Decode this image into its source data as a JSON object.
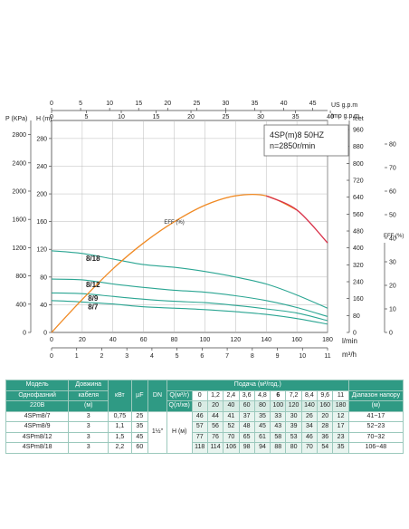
{
  "chart_data": {
    "type": "line",
    "info_box": {
      "line1": "4SP(m)8  50HZ",
      "line2": "n=2850r/min"
    },
    "axes": {
      "us_gpm": {
        "label": "US g.p.m",
        "ticks": [
          0,
          5,
          10,
          15,
          20,
          25,
          30,
          35,
          40,
          45
        ],
        "range": [
          0,
          47.55
        ]
      },
      "imp_gpm": {
        "label": "Imp g.p.m",
        "ticks": [
          0,
          5,
          10,
          15,
          20,
          25,
          30,
          35,
          40
        ],
        "range": [
          0,
          39.6
        ]
      },
      "pressure_kpa": {
        "label": "P (KPa)",
        "ticks": [
          0,
          400,
          800,
          1200,
          1600,
          2000,
          2400,
          2800
        ],
        "range": [
          0,
          3000
        ]
      },
      "head_m": {
        "label": "H (m)",
        "ticks": [
          0,
          40,
          80,
          120,
          160,
          200,
          240,
          280
        ],
        "range": [
          0,
          306
        ]
      },
      "head_feet": {
        "label": "feet",
        "ticks": [
          0,
          80,
          160,
          240,
          320,
          400,
          480,
          560,
          640,
          720,
          800,
          880,
          960
        ],
        "range": [
          0,
          1003
        ]
      },
      "efficiency": {
        "label": "EFF (%)",
        "ticks": [
          0,
          10,
          20,
          30,
          40,
          50,
          60,
          70,
          80
        ],
        "range": [
          0,
          90
        ]
      },
      "flow_lmin": {
        "label": "l/min",
        "ticks": [
          0,
          20,
          40,
          60,
          80,
          100,
          120,
          140,
          160,
          180
        ],
        "range": [
          0,
          180
        ]
      },
      "flow_m3h": {
        "label": "m³/h",
        "ticks": [
          0,
          1,
          2,
          3,
          4,
          5,
          6,
          7,
          8,
          9,
          10,
          11
        ],
        "range": [
          0,
          11
        ]
      }
    },
    "grid": true,
    "series": [
      {
        "name": "8/18",
        "x": [
          0,
          20,
          40,
          60,
          80,
          100,
          120,
          140,
          160,
          180
        ],
        "y": [
          118,
          114,
          106,
          98,
          94,
          88,
          80,
          70,
          54,
          35
        ]
      },
      {
        "name": "8/12",
        "x": [
          0,
          20,
          40,
          60,
          80,
          100,
          120,
          140,
          160,
          180
        ],
        "y": [
          77,
          76,
          70,
          65,
          61,
          58,
          53,
          46,
          36,
          23
        ]
      },
      {
        "name": "8/9",
        "x": [
          0,
          20,
          40,
          60,
          80,
          100,
          120,
          140,
          160,
          180
        ],
        "y": [
          57,
          56,
          52,
          48,
          45,
          43,
          39,
          34,
          28,
          17
        ]
      },
      {
        "name": "8/7",
        "x": [
          0,
          20,
          40,
          60,
          80,
          100,
          120,
          140,
          160,
          180
        ],
        "y": [
          46,
          44,
          41,
          37,
          35,
          33,
          30,
          26,
          20,
          12
        ]
      },
      {
        "name": "EFF (%)",
        "axis": "efficiency",
        "x": [
          0,
          20,
          40,
          60,
          80,
          100,
          120,
          140,
          160,
          180
        ],
        "y": [
          0,
          14,
          27,
          38,
          47,
          54,
          58,
          58,
          52,
          38
        ]
      }
    ]
  },
  "table": {
    "header1": [
      "Модель",
      "Довжина",
      "",
      "",
      "",
      "Подача (м³/год.)"
    ],
    "header2": [
      "Однофазний",
      "кабеля",
      "кВт",
      "µF",
      "DN"
    ],
    "header3": [
      "220В",
      "(м)"
    ],
    "q_m3h_label": "Q(м³/г)",
    "q_m3h": [
      "0",
      "1,2",
      "2,4",
      "3,6",
      "4,8",
      "6",
      "7,2",
      "8,4",
      "9,6",
      "11"
    ],
    "q_lmin_label": "Q(л/хв)",
    "q_lmin": [
      "0",
      "20",
      "40",
      "60",
      "80",
      "100",
      "120",
      "140",
      "160",
      "180"
    ],
    "head_range_label": "Діапазон напору",
    "head_range_unit": "(м)",
    "dn": "1½\"",
    "h_label": "H (м)",
    "rows": [
      {
        "model": "4SPm8/7",
        "cable": "3",
        "kw": "0,75",
        "uf": "25",
        "h": [
          "46",
          "44",
          "41",
          "37",
          "35",
          "33",
          "30",
          "26",
          "20",
          "12"
        ],
        "range": "41~17"
      },
      {
        "model": "4SPm8/9",
        "cable": "3",
        "kw": "1,1",
        "uf": "35",
        "h": [
          "57",
          "56",
          "52",
          "48",
          "45",
          "43",
          "39",
          "34",
          "28",
          "17"
        ],
        "range": "52~23"
      },
      {
        "model": "4SPm8/12",
        "cable": "3",
        "kw": "1,5",
        "uf": "45",
        "h": [
          "77",
          "76",
          "70",
          "65",
          "61",
          "58",
          "53",
          "46",
          "36",
          "23"
        ],
        "range": "70~32"
      },
      {
        "model": "4SPm8/18",
        "cable": "3",
        "kw": "2,2",
        "uf": "60",
        "h": [
          "118",
          "114",
          "106",
          "98",
          "94",
          "88",
          "80",
          "70",
          "54",
          "35"
        ],
        "range": "106~48"
      }
    ]
  }
}
